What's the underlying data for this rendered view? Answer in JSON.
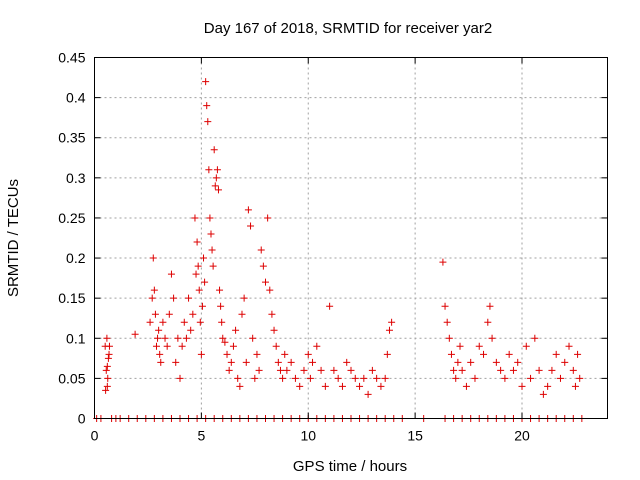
{
  "chart_data": {
    "type": "scatter",
    "title": "Day 167 of 2018, SRMTID for receiver yar2",
    "xlabel": "GPS time / hours",
    "ylabel": "SRMTID / TECUs",
    "xlim": [
      0,
      24
    ],
    "ylim": [
      0,
      0.45
    ],
    "x_ticks": [
      0,
      5,
      10,
      15,
      20
    ],
    "x_tick_labels": [
      "0",
      "5",
      "10",
      "15",
      "20"
    ],
    "y_ticks": [
      0,
      0.05,
      0.1,
      0.15,
      0.2,
      0.25,
      0.3,
      0.35,
      0.4,
      0.45
    ],
    "y_tick_labels": [
      "0",
      "0.05",
      "0.1",
      "0.15",
      "0.2",
      "0.25",
      "0.3",
      "0.35",
      "0.4",
      "0.45"
    ],
    "grid": true,
    "marker": "+",
    "color": "#dd0000",
    "series": [
      {
        "name": "SRMTID",
        "x": [
          0.5,
          0.55,
          0.6,
          0.65,
          0.7,
          0.58,
          0.62,
          0.52,
          0.68,
          0.6,
          1.9,
          2.6,
          2.7,
          2.75,
          2.8,
          2.85,
          2.9,
          2.95,
          3.0,
          3.05,
          3.1,
          3.2,
          3.3,
          3.4,
          3.5,
          3.6,
          3.7,
          3.8,
          3.9,
          4.0,
          4.1,
          4.2,
          4.3,
          4.4,
          4.5,
          4.6,
          4.7,
          4.75,
          4.8,
          4.85,
          4.9,
          4.95,
          5.0,
          5.05,
          5.1,
          5.15,
          5.2,
          5.25,
          5.3,
          5.35,
          5.4,
          5.45,
          5.5,
          5.55,
          5.6,
          5.65,
          5.7,
          5.75,
          5.8,
          5.85,
          5.9,
          5.95,
          6.0,
          6.1,
          6.2,
          6.3,
          6.4,
          6.5,
          6.6,
          6.7,
          6.8,
          6.9,
          7.0,
          7.1,
          7.2,
          7.3,
          7.4,
          7.5,
          7.6,
          7.7,
          7.8,
          7.9,
          8.0,
          8.1,
          8.2,
          8.3,
          8.4,
          8.5,
          8.6,
          8.7,
          8.8,
          8.9,
          9.0,
          9.2,
          9.4,
          9.6,
          9.8,
          10.0,
          10.1,
          10.2,
          10.4,
          10.6,
          10.8,
          11.0,
          11.2,
          11.4,
          11.6,
          11.8,
          12.0,
          12.2,
          12.4,
          12.6,
          12.8,
          13.0,
          13.2,
          13.4,
          13.6,
          13.7,
          13.8,
          13.9,
          16.3,
          16.4,
          16.5,
          16.6,
          16.7,
          16.8,
          16.9,
          17.0,
          17.1,
          17.2,
          17.4,
          17.6,
          17.8,
          18.0,
          18.2,
          18.4,
          18.5,
          18.6,
          18.8,
          19.0,
          19.2,
          19.4,
          19.6,
          19.8,
          20.0,
          20.2,
          20.4,
          20.6,
          20.8,
          21.0,
          21.2,
          21.4,
          21.6,
          21.8,
          22.0,
          22.2,
          22.4,
          22.5,
          22.6,
          22.7
        ],
        "y": [
          0.09,
          0.06,
          0.04,
          0.075,
          0.09,
          0.1,
          0.05,
          0.035,
          0.08,
          0.065,
          0.105,
          0.12,
          0.15,
          0.2,
          0.16,
          0.13,
          0.09,
          0.1,
          0.11,
          0.08,
          0.07,
          0.12,
          0.1,
          0.09,
          0.13,
          0.18,
          0.15,
          0.07,
          0.1,
          0.05,
          0.09,
          0.12,
          0.1,
          0.15,
          0.11,
          0.13,
          0.25,
          0.18,
          0.22,
          0.19,
          0.16,
          0.12,
          0.08,
          0.14,
          0.2,
          0.17,
          0.42,
          0.39,
          0.37,
          0.31,
          0.25,
          0.23,
          0.21,
          0.19,
          0.335,
          0.29,
          0.3,
          0.31,
          0.285,
          0.16,
          0.14,
          0.12,
          0.1,
          0.095,
          0.08,
          0.06,
          0.07,
          0.09,
          0.11,
          0.05,
          0.04,
          0.13,
          0.15,
          0.07,
          0.26,
          0.24,
          0.1,
          0.05,
          0.08,
          0.06,
          0.21,
          0.19,
          0.17,
          0.25,
          0.16,
          0.13,
          0.11,
          0.09,
          0.07,
          0.06,
          0.05,
          0.08,
          0.06,
          0.07,
          0.05,
          0.04,
          0.06,
          0.08,
          0.05,
          0.07,
          0.09,
          0.06,
          0.04,
          0.14,
          0.06,
          0.05,
          0.04,
          0.07,
          0.06,
          0.05,
          0.04,
          0.05,
          0.03,
          0.06,
          0.05,
          0.04,
          0.05,
          0.08,
          0.11,
          0.12,
          0.195,
          0.14,
          0.12,
          0.1,
          0.08,
          0.06,
          0.05,
          0.07,
          0.09,
          0.06,
          0.04,
          0.07,
          0.05,
          0.09,
          0.08,
          0.12,
          0.14,
          0.1,
          0.07,
          0.06,
          0.05,
          0.08,
          0.06,
          0.07,
          0.04,
          0.09,
          0.05,
          0.1,
          0.06,
          0.03,
          0.04,
          0.06,
          0.08,
          0.05,
          0.07,
          0.09,
          0.06,
          0.04,
          0.08,
          0.05
        ],
        "zero_x": [
          0.1,
          0.3,
          0.8,
          1.0,
          1.2,
          1.6,
          2.0,
          2.4,
          2.8,
          3.2,
          3.6,
          4.0,
          4.4,
          4.8,
          5.2,
          5.6,
          6.0,
          6.4,
          6.8,
          7.2,
          7.6,
          8.0,
          8.4,
          8.8,
          9.2,
          9.6,
          10.0,
          10.4,
          10.8,
          11.2,
          11.6,
          12.0,
          12.4,
          12.8,
          13.2,
          13.6,
          14.0,
          14.4,
          15.4,
          16.4,
          16.8,
          17.2,
          17.6,
          18.0,
          18.4,
          18.8,
          19.2,
          19.6,
          20.0,
          20.4,
          20.8,
          21.2,
          21.6,
          22.0,
          22.4,
          22.8
        ]
      }
    ]
  }
}
